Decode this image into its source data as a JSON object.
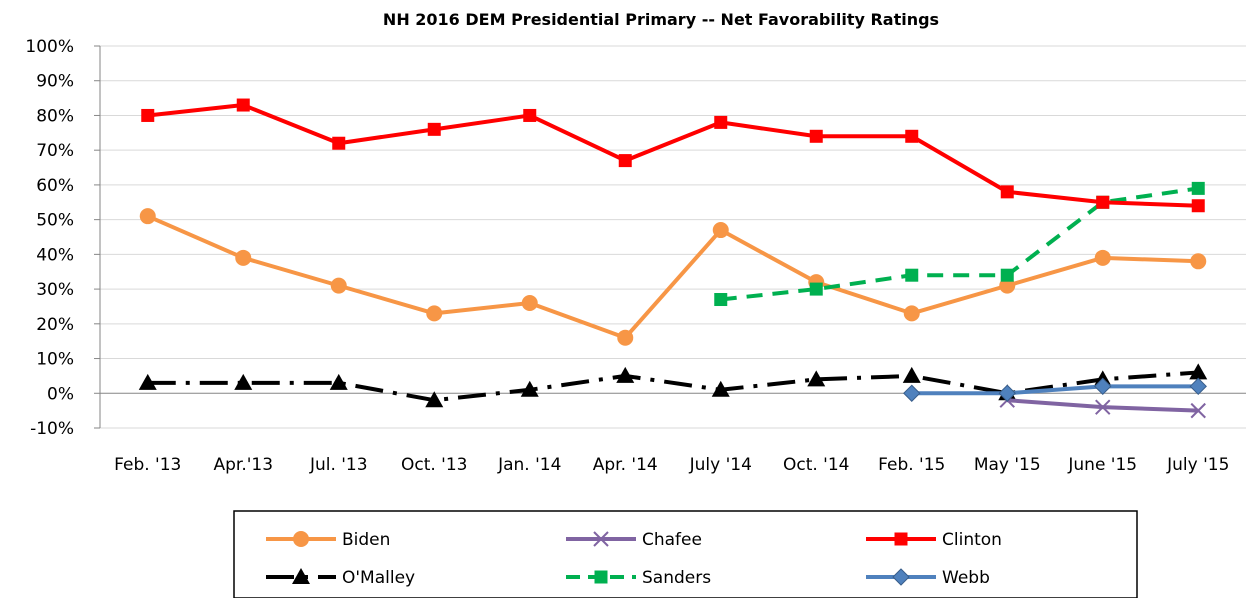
{
  "chart_data": {
    "type": "line",
    "title": "NH 2016 DEM Presidential Primary -- Net Favorability Ratings",
    "categories": [
      "Feb. '13",
      "Apr.'13",
      "Jul. '13",
      "Oct. '13",
      "Jan. '14",
      "Apr. '14",
      "July '14",
      "Oct. '14",
      "Feb. '15",
      "May '15",
      "June '15",
      "July '15"
    ],
    "y_ticks": [
      "-10%",
      "0%",
      "10%",
      "20%",
      "30%",
      "40%",
      "50%",
      "60%",
      "70%",
      "80%",
      "90%",
      "100%"
    ],
    "ylim": [
      -10,
      100
    ],
    "grid": true,
    "legend_position": "bottom",
    "series": [
      {
        "name": "Biden",
        "color": "#F79646",
        "marker": "circle",
        "dash": "solid",
        "values": [
          51,
          39,
          31,
          23,
          26,
          16,
          47,
          32,
          23,
          31,
          39,
          38
        ]
      },
      {
        "name": "Chafee",
        "color": "#8064A2",
        "marker": "x",
        "dash": "solid",
        "values": [
          null,
          null,
          null,
          null,
          null,
          null,
          null,
          null,
          null,
          -2,
          -4,
          -5
        ]
      },
      {
        "name": "Clinton",
        "color": "#FF0000",
        "marker": "square",
        "dash": "solid",
        "values": [
          80,
          83,
          72,
          76,
          80,
          67,
          78,
          74,
          74,
          58,
          55,
          54
        ]
      },
      {
        "name": "O'Malley",
        "color": "#000000",
        "marker": "triangle",
        "dash": "dashdot",
        "values": [
          3,
          3,
          3,
          -2,
          1,
          5,
          1,
          4,
          5,
          0,
          4,
          6
        ]
      },
      {
        "name": "Sanders",
        "color": "#00B050",
        "marker": "square",
        "dash": "dash",
        "values": [
          null,
          null,
          null,
          null,
          null,
          null,
          27,
          30,
          34,
          34,
          55,
          59
        ]
      },
      {
        "name": "Webb",
        "color": "#4F81BD",
        "marker": "diamond",
        "dash": "solid",
        "values": [
          null,
          null,
          null,
          null,
          null,
          null,
          null,
          null,
          0,
          0,
          2,
          2
        ]
      }
    ]
  }
}
